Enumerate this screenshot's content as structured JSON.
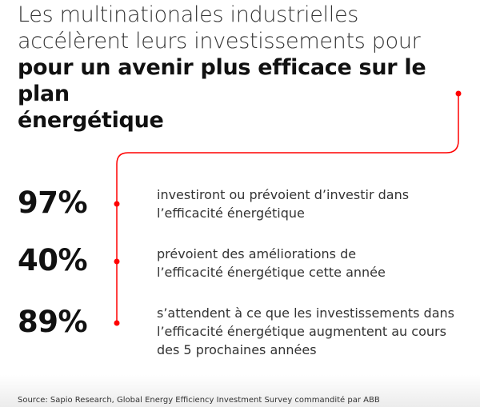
{
  "title": {
    "line1": "Les multinationales industrielles",
    "line2": "accélèrent leurs investissements pour",
    "line3": "pour un avenir plus efficace sur le plan",
    "line4": "énergétique"
  },
  "stats": [
    {
      "value": "97%",
      "text1": "investiront ou prévoient d’investir dans",
      "text2": "l’efficacité énergétique"
    },
    {
      "value": "40%",
      "text1": "prévoient des améliorations de",
      "text2": "l’efficacité énergétique cette année"
    },
    {
      "value": "89%",
      "text1": "s’attendent à ce que les investissements dans",
      "text2": "l’efficacité énergétique augmentent au cours",
      "text3": "des 5 prochaines années"
    }
  ],
  "source": "Source: Sapio Research, Global Energy Efficiency Investment Survey commandité par ABB",
  "colors": {
    "accent": "#ff0000"
  }
}
